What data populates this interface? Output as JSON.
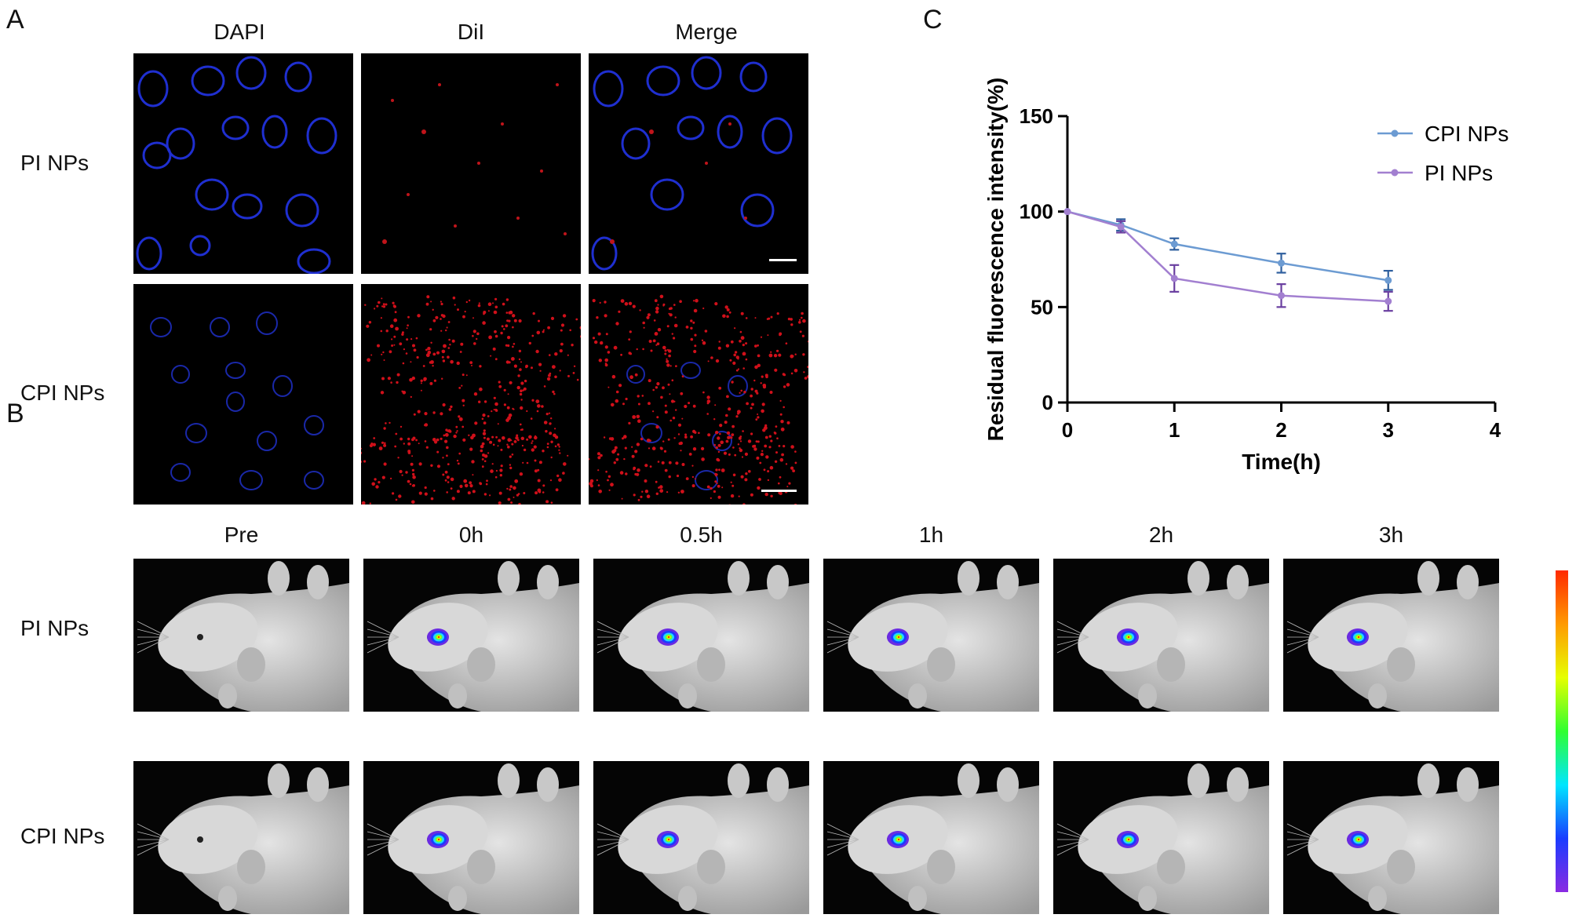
{
  "panels": {
    "a": "A",
    "b": "B",
    "c": "C"
  },
  "panel_a": {
    "columns": [
      "DAPI",
      "DiI",
      "Merge"
    ],
    "rows": [
      "PI NPs",
      "CPI NPs"
    ]
  },
  "panel_b": {
    "columns": [
      "Pre",
      "0h",
      "0.5h",
      "1h",
      "2h",
      "3h"
    ],
    "rows": [
      "PI NPs",
      "CPI NPs"
    ],
    "colors": {
      "scalebar_top": "#ff2a00",
      "scalebar_bottom": "#8a2be2"
    }
  },
  "chart_data": {
    "type": "line",
    "title": "",
    "xlabel": "Time(h)",
    "ylabel": "Residual fluorescence intensity(%)",
    "xlim": [
      0,
      4
    ],
    "ylim": [
      0,
      150
    ],
    "xticks": [
      0,
      1,
      2,
      3,
      4
    ],
    "yticks": [
      0,
      50,
      100,
      150
    ],
    "grid": false,
    "legend_position": "top-right",
    "series": [
      {
        "name": "CPI NPs",
        "color": "#6c9bd2",
        "x": [
          0,
          0.5,
          1,
          2,
          3
        ],
        "y": [
          100,
          93,
          83,
          73,
          64
        ],
        "err": [
          0,
          3,
          3,
          5,
          5
        ]
      },
      {
        "name": "PI NPs",
        "color": "#a27fd0",
        "x": [
          0,
          0.5,
          1,
          2,
          3
        ],
        "y": [
          100,
          92,
          65,
          56,
          53
        ],
        "err": [
          0,
          3,
          7,
          6,
          5
        ]
      }
    ]
  }
}
